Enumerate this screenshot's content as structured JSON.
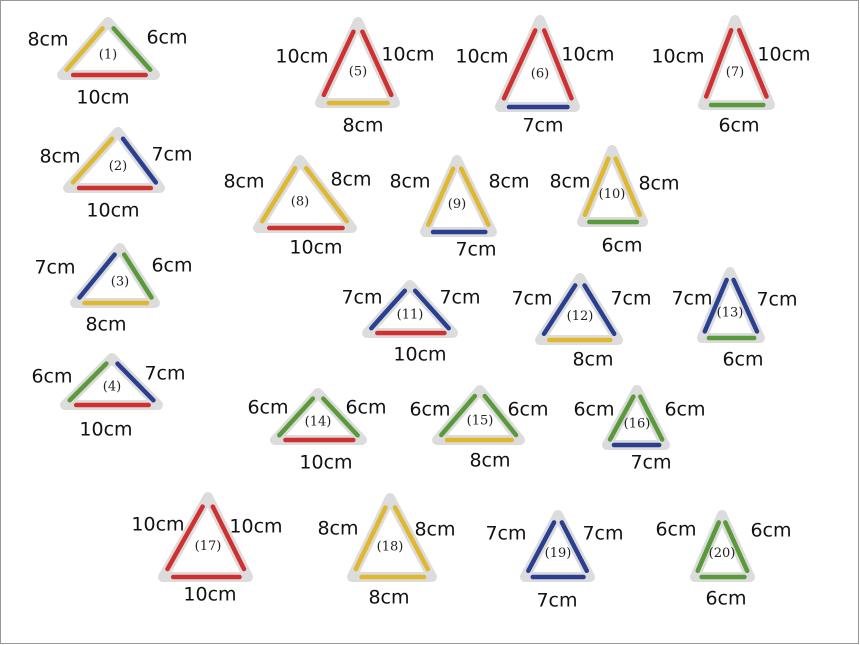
{
  "triangles": [
    {
      "label": "(1)",
      "left": "8cm",
      "right": "6cm",
      "bottom": "10cm",
      "colors": [
        "#e0b830",
        "#5a9a3a",
        "#d03030"
      ]
    },
    {
      "label": "(2)",
      "left": "8cm",
      "right": "7cm",
      "bottom": "10cm",
      "colors": [
        "#e0b830",
        "#2a3f8f",
        "#d03030"
      ]
    },
    {
      "label": "(3)",
      "left": "7cm",
      "right": "6cm",
      "bottom": "8cm",
      "colors": [
        "#2a3f8f",
        "#5a9a3a",
        "#e0b830"
      ]
    },
    {
      "label": "(4)",
      "left": "6cm",
      "right": "7cm",
      "bottom": "10cm",
      "colors": [
        "#5a9a3a",
        "#2a3f8f",
        "#d03030"
      ]
    },
    {
      "label": "(5)",
      "left": "10cm",
      "right": "10cm",
      "bottom": "8cm",
      "colors": [
        "#d03030",
        "#d03030",
        "#e0b830"
      ]
    },
    {
      "label": "(6)",
      "left": "10cm",
      "right": "10cm",
      "bottom": "7cm",
      "colors": [
        "#d03030",
        "#d03030",
        "#2a3f8f"
      ]
    },
    {
      "label": "(7)",
      "left": "10cm",
      "right": "10cm",
      "bottom": "6cm",
      "colors": [
        "#d03030",
        "#d03030",
        "#5a9a3a"
      ]
    },
    {
      "label": "(8)",
      "left": "8cm",
      "right": "8cm",
      "bottom": "10cm",
      "colors": [
        "#e0b830",
        "#e0b830",
        "#d03030"
      ]
    },
    {
      "label": "(9)",
      "left": "8cm",
      "right": "8cm",
      "bottom": "7cm",
      "colors": [
        "#e0b830",
        "#e0b830",
        "#2a3f8f"
      ]
    },
    {
      "label": "(10)",
      "left": "8cm",
      "right": "8cm",
      "bottom": "6cm",
      "colors": [
        "#e0b830",
        "#e0b830",
        "#5a9a3a"
      ]
    },
    {
      "label": "(11)",
      "left": "7cm",
      "right": "7cm",
      "bottom": "10cm",
      "colors": [
        "#2a3f8f",
        "#2a3f8f",
        "#d03030"
      ]
    },
    {
      "label": "(12)",
      "left": "7cm",
      "right": "7cm",
      "bottom": "8cm",
      "colors": [
        "#2a3f8f",
        "#2a3f8f",
        "#e0b830"
      ]
    },
    {
      "label": "(13)",
      "left": "7cm",
      "right": "7cm",
      "bottom": "6cm",
      "colors": [
        "#2a3f8f",
        "#2a3f8f",
        "#5a9a3a"
      ]
    },
    {
      "label": "(14)",
      "left": "6cm",
      "right": "6cm",
      "bottom": "10cm",
      "colors": [
        "#5a9a3a",
        "#5a9a3a",
        "#d03030"
      ]
    },
    {
      "label": "(15)",
      "left": "6cm",
      "right": "6cm",
      "bottom": "8cm",
      "colors": [
        "#5a9a3a",
        "#5a9a3a",
        "#e0b830"
      ]
    },
    {
      "label": "(16)",
      "left": "6cm",
      "right": "6cm",
      "bottom": "7cm",
      "colors": [
        "#5a9a3a",
        "#5a9a3a",
        "#2a3f8f"
      ]
    },
    {
      "label": "(17)",
      "left": "10cm",
      "right": "10cm",
      "bottom": "10cm",
      "colors": [
        "#d03030",
        "#d03030",
        "#d03030"
      ]
    },
    {
      "label": "(18)",
      "left": "8cm",
      "right": "8cm",
      "bottom": "8cm",
      "colors": [
        "#e0b830",
        "#e0b830",
        "#e0b830"
      ]
    },
    {
      "label": "(19)",
      "left": "7cm",
      "right": "7cm",
      "bottom": "7cm",
      "colors": [
        "#2a3f8f",
        "#2a3f8f",
        "#2a3f8f"
      ]
    },
    {
      "label": "(20)",
      "left": "6cm",
      "right": "6cm",
      "bottom": "6cm",
      "colors": [
        "#5a9a3a",
        "#5a9a3a",
        "#5a9a3a"
      ]
    }
  ]
}
